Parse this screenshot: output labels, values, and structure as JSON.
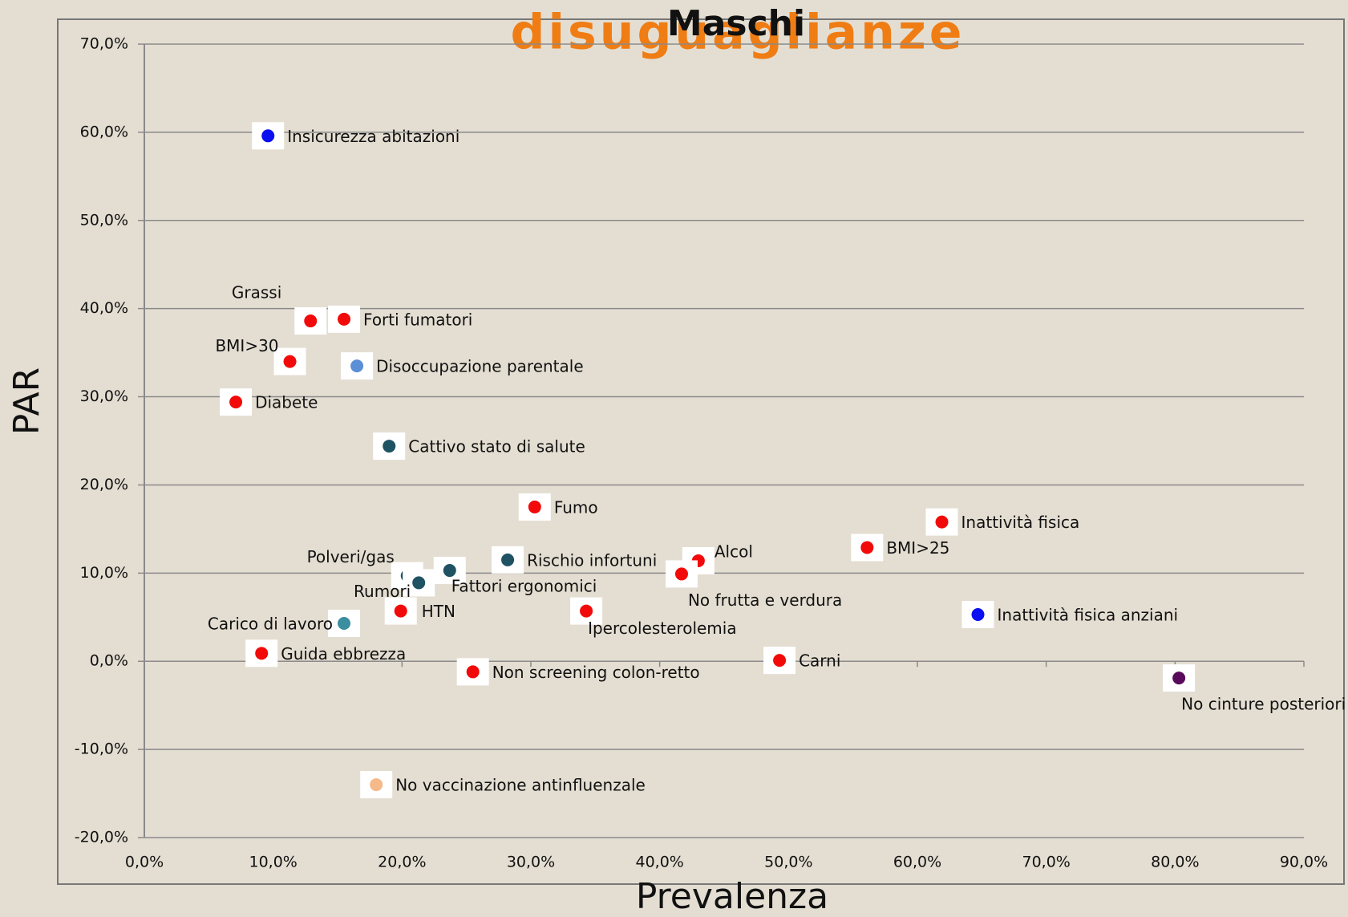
{
  "chart_data": {
    "type": "scatter",
    "title": "Maschi",
    "subtitle": "disuguaglianze",
    "xlabel": "Prevalenza",
    "ylabel": "PAR",
    "xlim": [
      0,
      90
    ],
    "ylim": [
      -20,
      70
    ],
    "xticks": [
      {
        "value": 0,
        "label": "0,0%"
      },
      {
        "value": 10,
        "label": "10,0%"
      },
      {
        "value": 20,
        "label": "20,0%"
      },
      {
        "value": 30,
        "label": "30,0%"
      },
      {
        "value": 40,
        "label": "40,0%"
      },
      {
        "value": 50,
        "label": "50,0%"
      },
      {
        "value": 60,
        "label": "60,0%"
      },
      {
        "value": 70,
        "label": "70,0%"
      },
      {
        "value": 80,
        "label": "80,0%"
      },
      {
        "value": 90,
        "label": "90,0%"
      }
    ],
    "yticks": [
      {
        "value": -20,
        "label": "-20,0%"
      },
      {
        "value": -10,
        "label": "-10,0%"
      },
      {
        "value": 0,
        "label": "0,0%"
      },
      {
        "value": 10,
        "label": "10,0%"
      },
      {
        "value": 20,
        "label": "20,0%"
      },
      {
        "value": 30,
        "label": "30,0%"
      },
      {
        "value": 40,
        "label": "40,0%"
      },
      {
        "value": 50,
        "label": "50,0%"
      },
      {
        "value": 60,
        "label": "60,0%"
      },
      {
        "value": 70,
        "label": "70,0%"
      }
    ],
    "grid": true,
    "labels": [
      "Insicurezza abitazioni",
      "Grassi",
      "Forti fumatori",
      "BMI>30",
      "Disoccupazione parentale",
      "Diabete",
      "Cattivo stato di salute",
      "Fumo",
      "Inattività fisica",
      "BMI>25",
      "Alcol",
      "No frutta e verdura",
      "Rischio infortuni",
      "Polveri/gas",
      "Fattori ergonomici",
      "Rumori",
      "HTN",
      "Ipercolesterolemia",
      "Carico di lavoro",
      "Inattività fisica anziani",
      "Guida ebbrezza",
      "Non screening colon-retto",
      "Carni",
      "No cinture posteriori",
      "No vaccinazione antinfluenzale"
    ],
    "x": [
      9.6,
      12.9,
      15.5,
      11.3,
      16.5,
      7.1,
      19.0,
      30.3,
      61.9,
      56.1,
      43.0,
      41.7,
      28.2,
      20.4,
      23.7,
      21.3,
      19.9,
      34.3,
      15.5,
      64.7,
      9.1,
      25.5,
      49.3,
      80.3,
      18.0
    ],
    "values": [
      59.6,
      38.6,
      38.8,
      34.0,
      33.5,
      29.4,
      24.4,
      17.5,
      15.8,
      12.9,
      11.4,
      9.9,
      11.5,
      9.7,
      10.3,
      8.9,
      5.7,
      5.7,
      4.3,
      5.3,
      0.9,
      -1.2,
      0.1,
      -1.9,
      -14.0
    ],
    "colors": [
      "#0a10f0",
      "#f20a0a",
      "#f20a0a",
      "#f20a0a",
      "#5b8fd6",
      "#f20a0a",
      "#1f5263",
      "#f20a0a",
      "#f20a0a",
      "#f20a0a",
      "#f20a0a",
      "#f20a0a",
      "#1f5263",
      "#1f5263",
      "#1f5263",
      "#1f5263",
      "#f20a0a",
      "#f20a0a",
      "#3a8ea0",
      "#0a10f0",
      "#f20a0a",
      "#f20a0a",
      "#f20a0a",
      "#5a0a5a",
      "#f5b98a"
    ]
  }
}
